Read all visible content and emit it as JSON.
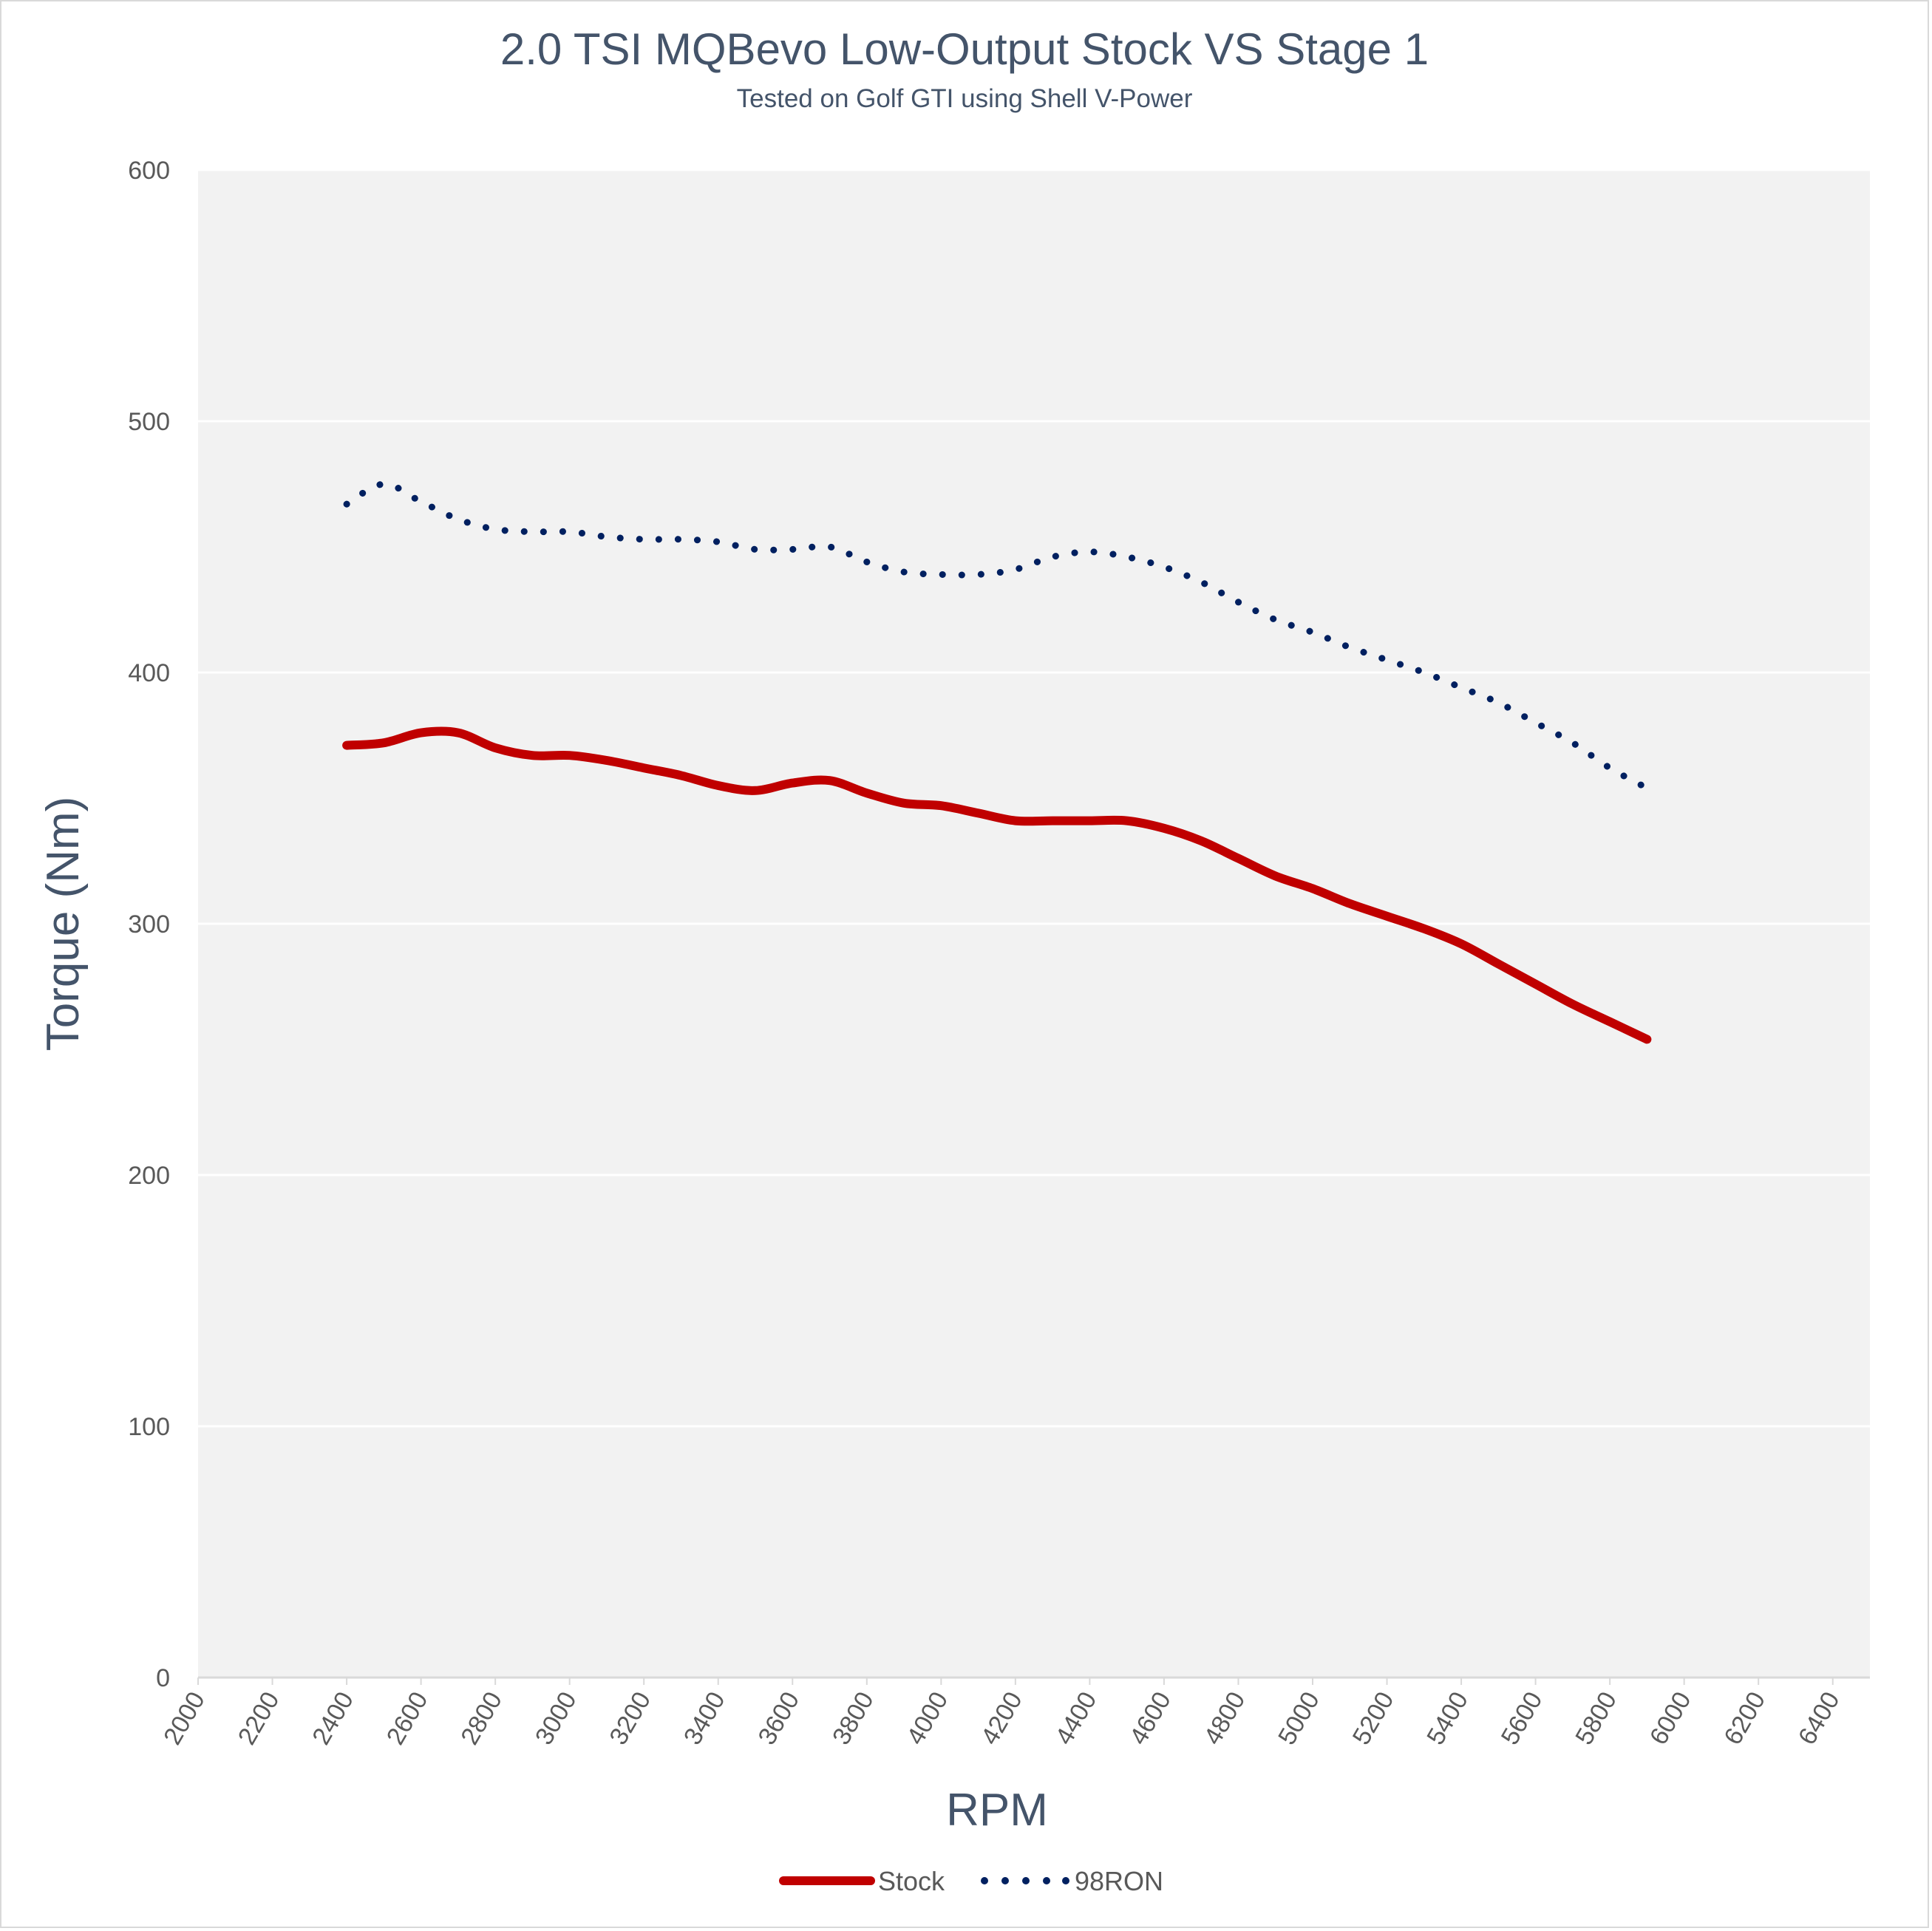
{
  "chart_data": {
    "type": "line",
    "title": "2.0 TSI MQBevo Low-Output Stock VS Stage 1",
    "subtitle": "Tested on Golf GTI using Shell V-Power",
    "xlabel": "RPM",
    "ylabel": "Torque (Nm)",
    "xlim": [
      2000,
      6500
    ],
    "ylim": [
      0,
      600
    ],
    "x_ticks": [
      2000,
      2200,
      2400,
      2600,
      2800,
      3000,
      3200,
      3400,
      3600,
      3800,
      4000,
      4200,
      4400,
      4600,
      4800,
      5000,
      5200,
      5400,
      5600,
      5800,
      6000,
      6200,
      6400
    ],
    "y_ticks": [
      0,
      100,
      200,
      300,
      400,
      500,
      600
    ],
    "grid": true,
    "legend_position": "bottom-center",
    "series": [
      {
        "name": "Stock",
        "color": "#c00000",
        "style": "solid",
        "x": [
          2400,
          2500,
          2600,
          2700,
          2800,
          2900,
          3000,
          3100,
          3200,
          3300,
          3400,
          3500,
          3600,
          3700,
          3800,
          3900,
          4000,
          4100,
          4200,
          4300,
          4400,
          4500,
          4600,
          4700,
          4800,
          4900,
          5000,
          5100,
          5200,
          5300,
          5400,
          5500,
          5600,
          5700,
          5800,
          5900
        ],
        "y": [
          371,
          372,
          376,
          376,
          370,
          367,
          367,
          365,
          362,
          359,
          355,
          353,
          356,
          357,
          352,
          348,
          347,
          344,
          341,
          341,
          341,
          341,
          338,
          333,
          326,
          319,
          314,
          308,
          303,
          298,
          292,
          284,
          276,
          268,
          261,
          254
        ]
      },
      {
        "name": "98RON",
        "color": "#002060",
        "style": "dotted",
        "x": [
          2400,
          2500,
          2600,
          2700,
          2800,
          2900,
          3000,
          3100,
          3200,
          3300,
          3400,
          3500,
          3600,
          3700,
          3800,
          3900,
          4000,
          4100,
          4200,
          4300,
          4400,
          4500,
          4600,
          4700,
          4800,
          4900,
          5000,
          5100,
          5200,
          5300,
          5400,
          5500,
          5600,
          5700,
          5800,
          5900
        ],
        "y": [
          467,
          475,
          468,
          461,
          457,
          456,
          456,
          454,
          453,
          453,
          452,
          449,
          449,
          450,
          444,
          440,
          439,
          439,
          441,
          446,
          448,
          446,
          442,
          436,
          428,
          421,
          416,
          410,
          405,
          400,
          394,
          388,
          380,
          372,
          362,
          354
        ]
      }
    ]
  }
}
